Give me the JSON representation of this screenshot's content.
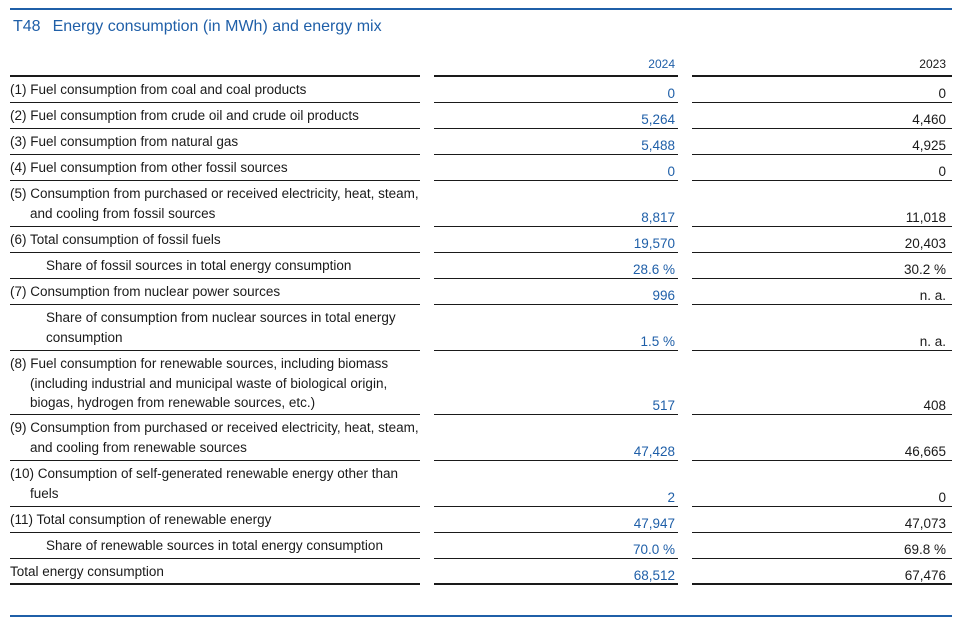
{
  "title": {
    "code": "T48",
    "text": "Energy consumption (in MWh) and energy mix"
  },
  "columns": {
    "y2024": "2024",
    "y2023": "2023"
  },
  "rows": [
    {
      "label": "(1) Fuel consumption from coal and coal products",
      "v2024": "0",
      "v2023": "0"
    },
    {
      "label": "(2) Fuel consumption from crude oil and crude oil products",
      "v2024": "5,264",
      "v2023": "4,460"
    },
    {
      "label": "(3) Fuel consumption from natural gas",
      "v2024": "5,488",
      "v2023": "4,925"
    },
    {
      "label": "(4) Fuel consumption from other fossil sources",
      "v2024": "0",
      "v2023": "0"
    },
    {
      "label": "(5) Consumption from purchased or received electricity, heat, steam, and cooling from fossil sources",
      "v2024": "8,817",
      "v2023": "11,018"
    },
    {
      "label": "(6) Total consumption of fossil fuels",
      "v2024": "19,570",
      "v2023": "20,403"
    },
    {
      "label": "Share of fossil sources in total energy consumption",
      "v2024": "28.6 %",
      "v2023": "30.2 %"
    },
    {
      "label": "(7) Consumption from nuclear power sources",
      "v2024": "996",
      "v2023": "n. a."
    },
    {
      "label": "Share of consumption from nuclear sources in total energy consumption",
      "v2024": "1.5 %",
      "v2023": "n. a."
    },
    {
      "label": "(8) Fuel consumption for renewable sources, including biomass (including industrial and municipal waste of biological origin, biogas, hydrogen from renewable sources, etc.)",
      "v2024": "517",
      "v2023": "408"
    },
    {
      "label": "(9) Consumption from purchased or received electricity, heat, steam, and cooling from renewable sources",
      "v2024": "47,428",
      "v2023": "46,665"
    },
    {
      "label": "(10) Consumption of self-generated renewable energy other than fuels",
      "v2024": "2",
      "v2023": "0"
    },
    {
      "label": "(11) Total consumption of renewable energy",
      "v2024": "47,947",
      "v2023": "47,073"
    },
    {
      "label": "Share of renewable sources in total energy consumption",
      "v2024": "70.0 %",
      "v2023": "69.8 %"
    },
    {
      "label": "Total energy consumption",
      "v2024": "68,512",
      "v2023": "67,476"
    }
  ]
}
